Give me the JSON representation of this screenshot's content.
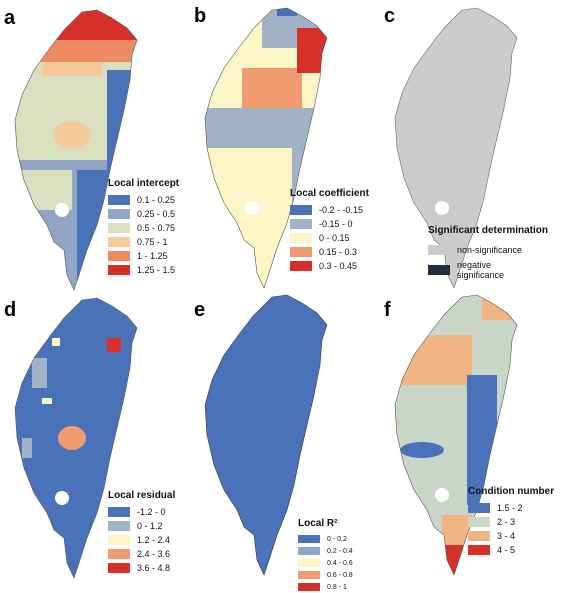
{
  "panels": [
    {
      "letter": "a",
      "legend": {
        "title": "Local intercept",
        "items": [
          {
            "label": "0.1 - 0.25",
            "color": "#4a72b8"
          },
          {
            "label": "0.25 - 0.5",
            "color": "#91a5c4"
          },
          {
            "label": "0.5 - 0.75",
            "color": "#d8e0c0"
          },
          {
            "label": "0.75 - 1",
            "color": "#f6c99a"
          },
          {
            "label": "1 - 1.25",
            "color": "#ec8a62"
          },
          {
            "label": "1.25 - 1.5",
            "color": "#d7302a"
          }
        ]
      }
    },
    {
      "letter": "b",
      "legend": {
        "title": "Local coefficient",
        "items": [
          {
            "label": "-0.2 - -0.15",
            "color": "#4a72b8"
          },
          {
            "label": "-0.15 - 0",
            "color": "#a3b3c6"
          },
          {
            "label": "0 - 0.15",
            "color": "#fbf6c6"
          },
          {
            "label": "0.15 - 0.3",
            "color": "#f09a70"
          },
          {
            "label": "0.3 - 0.45",
            "color": "#d7302a"
          }
        ]
      }
    },
    {
      "letter": "c",
      "legend": {
        "title": "Significant determination",
        "items": [
          {
            "label": "non-significance",
            "color": "#cccccc"
          },
          {
            "label": "negative significance",
            "color": "#1f2f3f"
          }
        ]
      }
    },
    {
      "letter": "d",
      "legend": {
        "title": "Local residual",
        "items": [
          {
            "label": "-1.2 - 0",
            "color": "#4a72b8"
          },
          {
            "label": "0 - 1.2",
            "color": "#a3b3c6"
          },
          {
            "label": "1.2 - 2.4",
            "color": "#fbf6c6"
          },
          {
            "label": "2.4 - 3.6",
            "color": "#f09a70"
          },
          {
            "label": "3.6 - 4.8",
            "color": "#d7302a"
          }
        ]
      }
    },
    {
      "letter": "e",
      "legend": {
        "title": "Local R²",
        "items": [
          {
            "label": "0 - 0.2",
            "color": "#4a72b8"
          },
          {
            "label": "0.2 - 0.4",
            "color": "#8fa6c6"
          },
          {
            "label": "0.4 - 0.6",
            "color": "#fbf6c6"
          },
          {
            "label": "0.6 - 0.8",
            "color": "#f09a70"
          },
          {
            "label": "0.8 - 1",
            "color": "#d7302a"
          }
        ]
      }
    },
    {
      "letter": "f",
      "legend": {
        "title": "Condition number",
        "items": [
          {
            "label": "1.5 - 2",
            "color": "#4a72b8"
          },
          {
            "label": "2 - 3",
            "color": "#c9d6c8"
          },
          {
            "label": "3 - 4",
            "color": "#f3b484"
          },
          {
            "label": "4 - 5",
            "color": "#d7302a"
          }
        ]
      }
    }
  ]
}
